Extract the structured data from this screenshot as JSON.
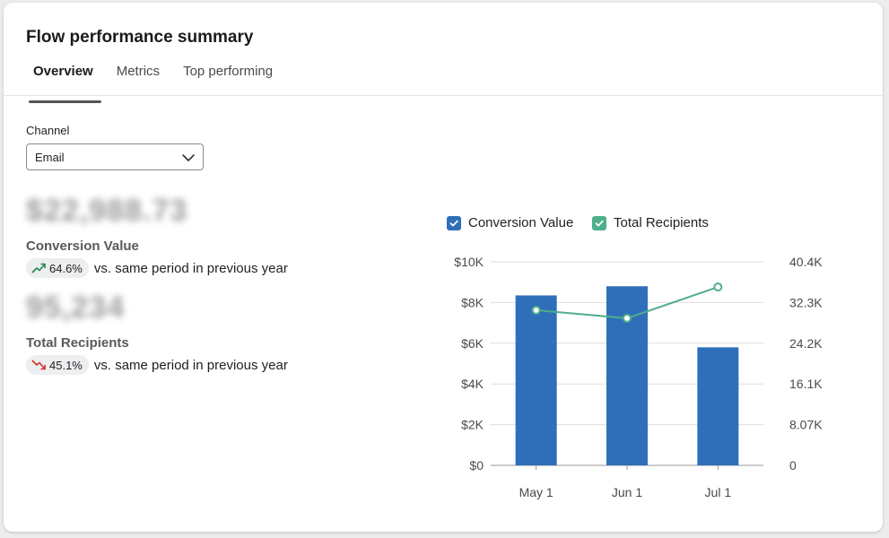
{
  "header": {
    "title": "Flow performance summary",
    "tabs": [
      {
        "label": "Overview",
        "active": true
      },
      {
        "label": "Metrics",
        "active": false
      },
      {
        "label": "Top performing",
        "active": false
      }
    ]
  },
  "filter": {
    "label": "Channel",
    "selected": "Email"
  },
  "metrics": [
    {
      "value": "$22,988.73",
      "label": "Conversion Value",
      "delta": "64.6%",
      "direction": "up",
      "comparison": "vs. same period in previous year"
    },
    {
      "value": "95,234",
      "label": "Total Recipients",
      "delta": "45.1%",
      "direction": "down",
      "comparison": "vs. same period in previous year"
    }
  ],
  "colors": {
    "bar": "#2f6fba",
    "line": "#4fae8b",
    "up": "#1f8a4c",
    "down": "#d0312d"
  },
  "chart_data": {
    "type": "bar",
    "categories": [
      "May 1",
      "Jun 1",
      "Jul 1"
    ],
    "series": [
      {
        "name": "Conversion Value",
        "type": "bar",
        "axis": "left",
        "values": [
          8350,
          8800,
          5800
        ]
      },
      {
        "name": "Total Recipients",
        "type": "line",
        "axis": "right",
        "values": [
          30800,
          29200,
          35400
        ]
      }
    ],
    "y_left": {
      "ticks": [
        "$0",
        "$2K",
        "$4K",
        "$6K",
        "$8K",
        "$10K"
      ],
      "range": [
        0,
        10000
      ]
    },
    "y_right": {
      "ticks": [
        "0",
        "8.07K",
        "16.1K",
        "24.2K",
        "32.3K",
        "40.4K"
      ],
      "range": [
        0,
        40400
      ]
    },
    "legend": {
      "position": "top"
    },
    "grid": true
  }
}
